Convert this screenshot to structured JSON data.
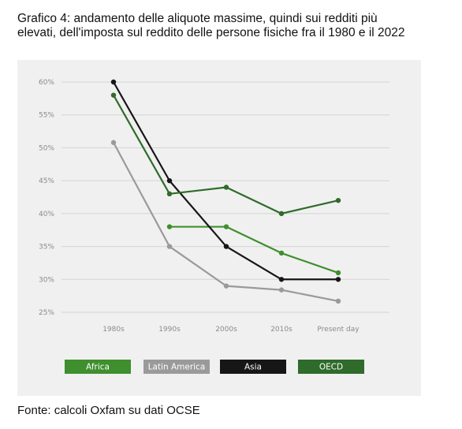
{
  "title": "Grafico 4: andamento delle aliquote massime, quindi sui redditi più elevati, dell'imposta sul reddito delle persone fisiche fra il 1980 e il 2022",
  "source": "Fonte: calcoli Oxfam su dati OCSE",
  "chart_data": {
    "type": "line",
    "categories": [
      "1980s",
      "1990s",
      "2000s",
      "2010s",
      "Present day"
    ],
    "ylim": [
      25,
      60
    ],
    "yticks": [
      "60%",
      "55%",
      "50%",
      "45%",
      "40%",
      "35%",
      "30%",
      "25%"
    ],
    "grid": true,
    "legend_position": "bottom",
    "series": [
      {
        "name": "Africa",
        "color": "#3f8f2e",
        "values": [
          null,
          38,
          38,
          34,
          31
        ]
      },
      {
        "name": "Latin America",
        "color": "#9a9a9a",
        "values": [
          50.8,
          35,
          29,
          28.4,
          26.7
        ]
      },
      {
        "name": "Asia",
        "color": "#161616",
        "values": [
          60,
          45,
          35,
          30,
          30
        ]
      },
      {
        "name": "OECD",
        "color": "#2f6b2a",
        "values": [
          58,
          43,
          44,
          40,
          42
        ]
      }
    ]
  }
}
